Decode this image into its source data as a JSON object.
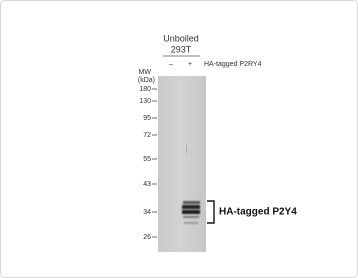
{
  "header": {
    "condition": "Unboiled",
    "cell_line": "293T"
  },
  "lanes": {
    "minus": "–",
    "plus": "+",
    "label": "HA-tagged P2RY4"
  },
  "mw": {
    "title": "MW",
    "unit": "(kDa)",
    "markers": [
      180,
      130,
      95,
      72,
      55,
      43,
      34,
      26
    ]
  },
  "band_label": "HA-tagged P2Y4"
}
